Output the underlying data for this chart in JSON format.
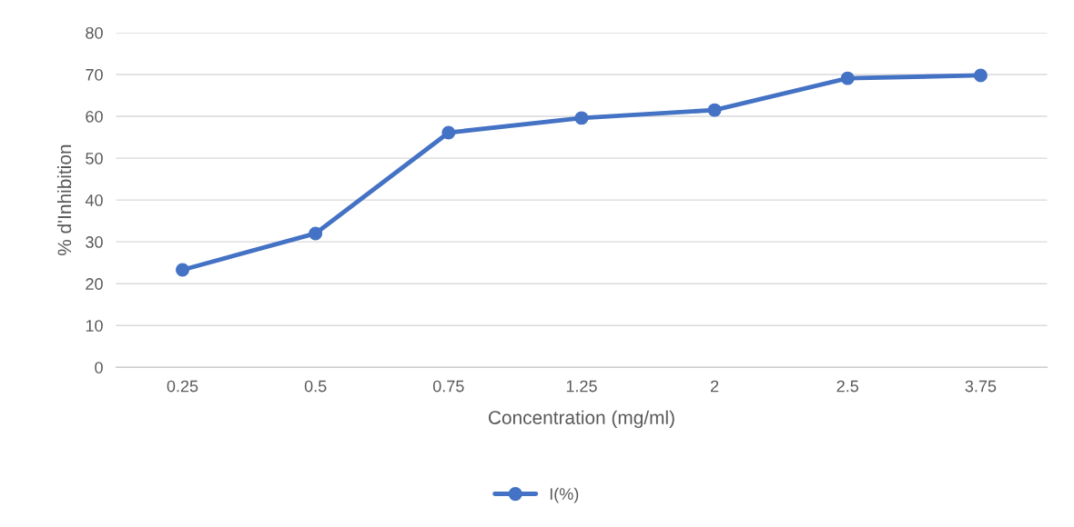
{
  "chart_data": {
    "type": "line",
    "xlabel": "Concentration (mg/ml)",
    "ylabel": "% d'Inhibition",
    "categories": [
      "0.25",
      "0.5",
      "0.75",
      "1.25",
      "2",
      "2.5",
      "3.75"
    ],
    "series": [
      {
        "name": "I(%)",
        "color": "#4472c4",
        "values": [
          23.3,
          32.0,
          56.1,
          59.6,
          61.5,
          69.1,
          69.8
        ]
      }
    ],
    "ylim": [
      0,
      80
    ],
    "yticks": [
      0,
      10,
      20,
      30,
      40,
      50,
      60,
      70,
      80
    ],
    "grid": "y",
    "legend": "bottom",
    "marker": "circle",
    "line_style": "solid"
  }
}
